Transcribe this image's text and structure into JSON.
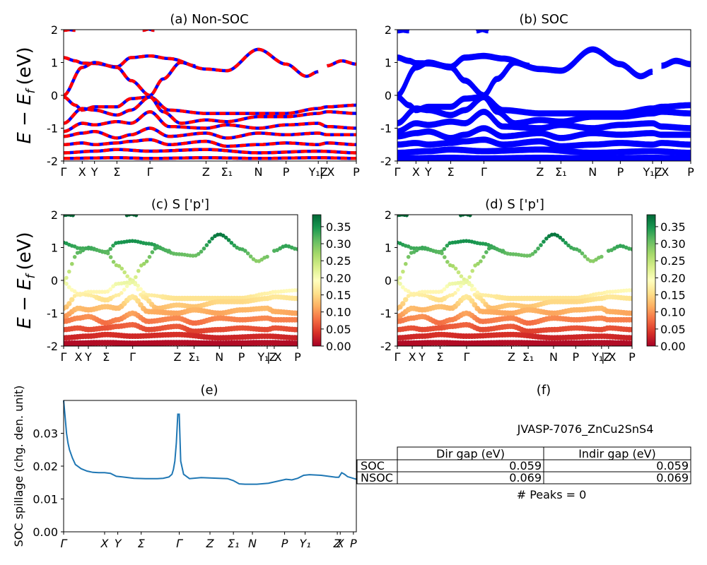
{
  "figure": {
    "ylabel_band": "E − E_f (eV)",
    "ylabel_band_main": "E − E",
    "ylabel_band_sub": "f",
    "ylabel_band_unit": "(eV)"
  },
  "kpath": {
    "labels": [
      "Γ",
      "X",
      "Y",
      "Σ",
      "Γ",
      "Z",
      "Σ₁",
      "N",
      "P",
      "Y₁Z",
      "| X",
      "P"
    ],
    "positions": [
      0,
      0.0635,
      0.1055,
      0.182,
      0.295,
      0.4865,
      0.5575,
      0.6655,
      0.76,
      0.87,
      0.9,
      1.0
    ]
  },
  "panels": {
    "a": {
      "title": "(a) Non-SOC"
    },
    "b": {
      "title": "(b) SOC"
    },
    "c": {
      "title": "(c)  S ['p']"
    },
    "d": {
      "title": "(d) S ['p']"
    },
    "e": {
      "title": "(e)"
    },
    "f": {
      "title": "(f)"
    }
  },
  "colors": {
    "nonsoc_a": "#0000ff",
    "nonsoc_b": "#ff0000",
    "soc": "#0000ff",
    "spillage": "#1f77b4",
    "colormap": "RdYlGn"
  },
  "chart_data": [
    {
      "type": "line",
      "panel": "a",
      "title": "(a) Non-SOC",
      "ylabel": "E − E_f (eV)",
      "ylim": [
        -2,
        2
      ],
      "yticks": [
        -2,
        -1,
        0,
        1,
        2
      ],
      "series": [
        {
          "name": "",
          "note": "band structure, blue/red dashed overlay"
        }
      ]
    },
    {
      "type": "line",
      "panel": "b",
      "title": "(b) SOC",
      "ylim": [
        -2,
        2
      ],
      "yticks": [
        -2,
        -1,
        0,
        1,
        2
      ]
    },
    {
      "type": "scatter",
      "panel": "c",
      "title": "(c)  S ['p']",
      "ylim": [
        -2,
        2
      ],
      "yticks": [
        -2,
        -1,
        0,
        1,
        2
      ],
      "colorbar": {
        "range": [
          0.0,
          0.385
        ],
        "ticks": [
          "0.00",
          "0.05",
          "0.10",
          "0.15",
          "0.20",
          "0.25",
          "0.30",
          "0.35"
        ]
      }
    },
    {
      "type": "scatter",
      "panel": "d",
      "title": "(d) S ['p']",
      "ylim": [
        -2,
        2
      ],
      "yticks": [
        -2,
        -1,
        0,
        1,
        2
      ],
      "colorbar": {
        "range": [
          0.0,
          0.385
        ],
        "ticks": [
          "0.00",
          "0.05",
          "0.10",
          "0.15",
          "0.20",
          "0.25",
          "0.30",
          "0.35"
        ]
      }
    },
    {
      "type": "line",
      "panel": "e",
      "title": "(e)",
      "ylabel": "SOC spillage (chg. den. unit)",
      "ylim": [
        0,
        0.04
      ],
      "yticks": [
        "0.00",
        "0.01",
        "0.02",
        "0.03"
      ],
      "xtick_labels": [
        "Γ",
        "X",
        "Y",
        "Σ",
        "Γ",
        "Z",
        "Σ₁",
        "N",
        "P",
        "Y₁",
        "Z",
        "X",
        "P"
      ],
      "xtick_positions": [
        0,
        0.14,
        0.185,
        0.265,
        0.395,
        0.5,
        0.58,
        0.645,
        0.755,
        0.825,
        0.935,
        0.945,
        0.99
      ],
      "x": [
        0,
        0.005,
        0.01,
        0.015,
        0.02,
        0.03,
        0.04,
        0.06,
        0.08,
        0.1,
        0.12,
        0.14,
        0.16,
        0.18,
        0.2,
        0.24,
        0.28,
        0.32,
        0.34,
        0.36,
        0.37,
        0.375,
        0.38,
        0.385,
        0.39,
        0.395,
        0.4,
        0.41,
        0.43,
        0.47,
        0.5,
        0.53,
        0.56,
        0.58,
        0.6,
        0.62,
        0.66,
        0.7,
        0.74,
        0.76,
        0.78,
        0.8,
        0.82,
        0.84,
        0.88,
        0.93,
        0.94,
        0.95,
        0.96,
        0.97,
        1.0
      ],
      "y": [
        0.04,
        0.035,
        0.03,
        0.027,
        0.025,
        0.0225,
        0.0205,
        0.0192,
        0.0185,
        0.0181,
        0.018,
        0.018,
        0.0178,
        0.0169,
        0.0167,
        0.0163,
        0.0162,
        0.0162,
        0.0163,
        0.0167,
        0.0175,
        0.019,
        0.0215,
        0.027,
        0.0358,
        0.0358,
        0.0215,
        0.0175,
        0.0162,
        0.0165,
        0.0164,
        0.0163,
        0.0162,
        0.0156,
        0.0146,
        0.0145,
        0.0145,
        0.0148,
        0.0156,
        0.016,
        0.0158,
        0.0163,
        0.0172,
        0.0174,
        0.0172,
        0.0166,
        0.0166,
        0.018,
        0.0175,
        0.0168,
        0.016
      ]
    },
    {
      "type": "table",
      "panel": "f",
      "title": "(f)",
      "caption": "JVASP-7076_ZnCu2SnS4",
      "columns": [
        "",
        "Dir gap (eV)",
        "Indir gap (eV)"
      ],
      "rows": [
        [
          "SOC",
          "0.059",
          "0.059"
        ],
        [
          "NSOC",
          "0.069",
          "0.069"
        ]
      ],
      "footnote": "# Peaks = 0"
    }
  ]
}
